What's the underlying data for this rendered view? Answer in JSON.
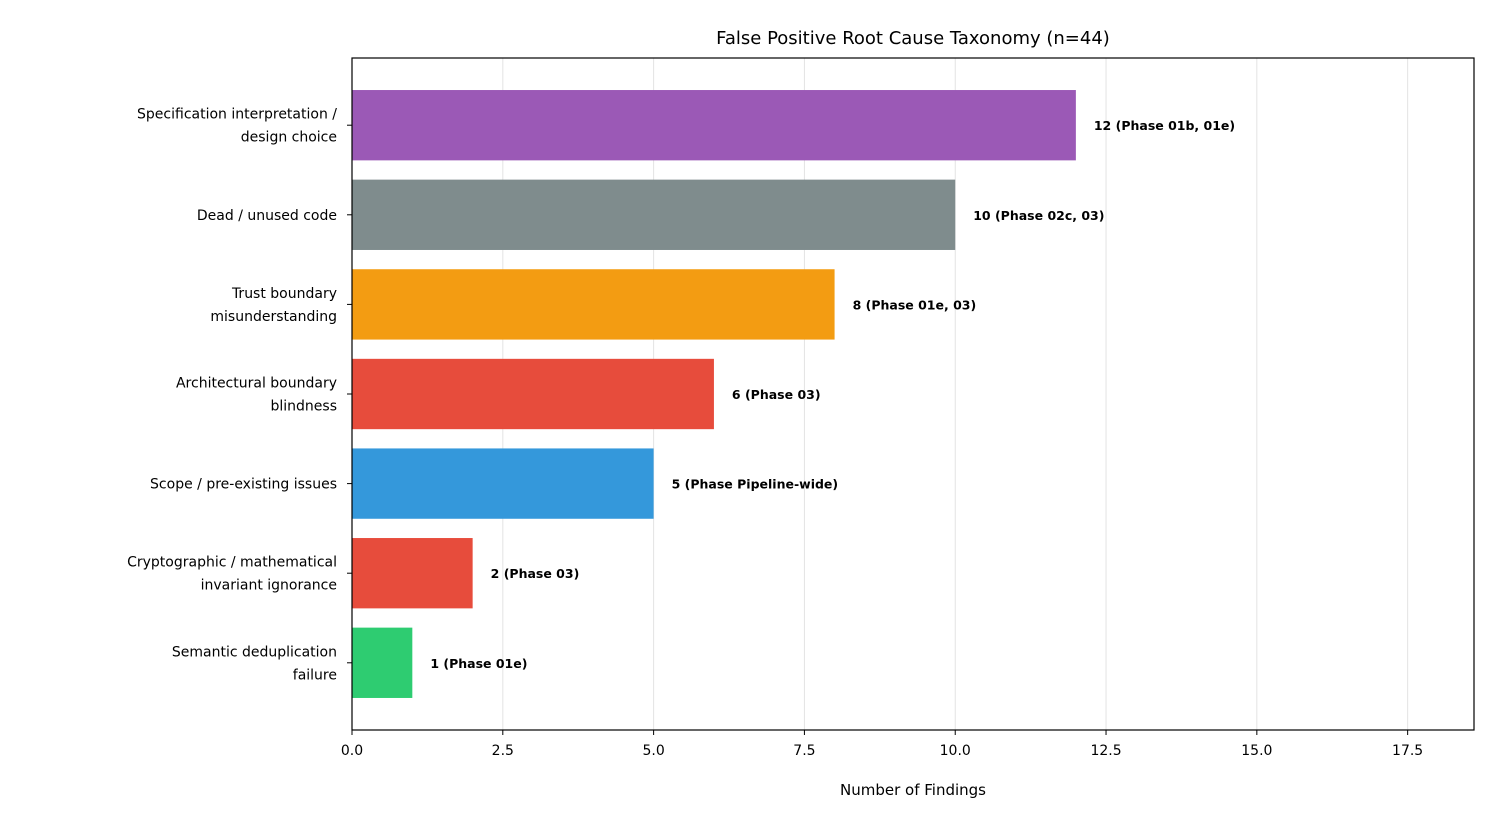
{
  "chart_data": {
    "type": "bar",
    "orientation": "horizontal",
    "title": "False Positive Root Cause Taxonomy (n=44)",
    "xlabel": "Number of Findings",
    "ylabel": "",
    "xlim": [
      0,
      18.6
    ],
    "xticks": [
      "0.0",
      "2.5",
      "5.0",
      "7.5",
      "10.0",
      "12.5",
      "15.0",
      "17.5"
    ],
    "grid": "vertical",
    "categories": [
      [
        "Specification interpretation /",
        "design choice"
      ],
      [
        "Dead / unused code"
      ],
      [
        "Trust boundary",
        "misunderstanding"
      ],
      [
        "Architectural boundary",
        "blindness"
      ],
      [
        "Scope / pre-existing issues"
      ],
      [
        "Cryptographic / mathematical",
        "invariant ignorance"
      ],
      [
        "Semantic deduplication",
        "failure"
      ]
    ],
    "values": [
      12,
      10,
      8,
      6,
      5,
      2,
      1
    ],
    "data_labels": [
      "12  (Phase 01b, 01e)",
      "10  (Phase 02c, 03)",
      "8  (Phase 01e, 03)",
      "6  (Phase 03)",
      "5  (Phase Pipeline-wide)",
      "2  (Phase 03)",
      "1  (Phase 01e)"
    ],
    "colors": [
      "#9b59b6",
      "#7f8c8d",
      "#f39c12",
      "#e74c3c",
      "#3498db",
      "#e74c3c",
      "#2ecc71"
    ]
  }
}
